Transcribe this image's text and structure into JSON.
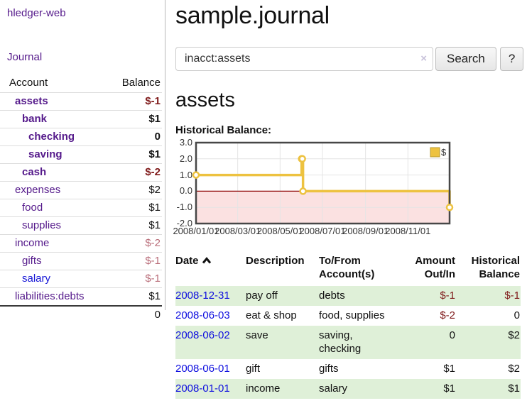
{
  "colors": {
    "purple": "#551a8b",
    "blue": "#1414d6",
    "link_blue": "#0e0edf",
    "black": "#111111",
    "darkred": "#7f1a1a",
    "palered": "#b96d79",
    "stripe_green": "#dff0d8",
    "chart_line": "#edc240",
    "chart_negative_fill": "#fbe1e1",
    "chart_zero_line": "#8b0000",
    "chart_grid": "#e4e4e4",
    "chart_border": "#474747"
  },
  "sidebar": {
    "brand": "hledger-web",
    "nav_journal": "Journal",
    "accounts": {
      "account_header": "Account",
      "balance_header": "Balance",
      "rows": [
        {
          "name": "assets",
          "indent": 1,
          "bold": true,
          "name_color": "purple",
          "balance": "$-1",
          "balance_color": "darkred"
        },
        {
          "name": "bank",
          "indent": 2,
          "bold": true,
          "name_color": "purple",
          "balance": "$1",
          "balance_color": "black"
        },
        {
          "name": "checking",
          "indent": 3,
          "bold": true,
          "name_color": "purple",
          "balance": "0",
          "balance_color": "black"
        },
        {
          "name": "saving",
          "indent": 3,
          "bold": true,
          "name_color": "purple",
          "balance": "$1",
          "balance_color": "black"
        },
        {
          "name": "cash",
          "indent": 2,
          "bold": true,
          "name_color": "purple",
          "balance": "$-2",
          "balance_color": "darkred"
        },
        {
          "name": "expenses",
          "indent": 1,
          "bold": false,
          "name_color": "purple",
          "balance": "$2",
          "balance_color": "black"
        },
        {
          "name": "food",
          "indent": 2,
          "bold": false,
          "name_color": "purple",
          "balance": "$1",
          "balance_color": "black"
        },
        {
          "name": "supplies",
          "indent": 2,
          "bold": false,
          "name_color": "purple",
          "balance": "$1",
          "balance_color": "black"
        },
        {
          "name": "income",
          "indent": 1,
          "bold": false,
          "name_color": "purple",
          "balance": "$-2",
          "balance_color": "palered"
        },
        {
          "name": "gifts",
          "indent": 2,
          "bold": false,
          "name_color": "purple",
          "balance": "$-1",
          "balance_color": "palered"
        },
        {
          "name": "salary",
          "indent": 2,
          "bold": false,
          "name_color": "blue",
          "balance": "$-1",
          "balance_color": "palered"
        },
        {
          "name": "liabilities:debts",
          "indent": 1,
          "bold": false,
          "name_color": "purple",
          "balance": "$1",
          "balance_color": "black"
        }
      ],
      "total": "0"
    }
  },
  "main": {
    "title": "sample.journal",
    "search": {
      "value": "inacct:assets",
      "clear_icon": "×",
      "button_label": "Search",
      "help_label": "?"
    },
    "heading": "assets",
    "chart_title": "Historical Balance:",
    "register": {
      "headers": {
        "date": "Date",
        "description": "Description",
        "accounts": "To/From Account(s)",
        "amount": "Amount Out/In",
        "balance": "Historical Balance"
      },
      "rows": [
        {
          "date": "2008-12-31",
          "description": "pay off",
          "accounts": "debts",
          "amount": "$-1",
          "amount_color": "darkred",
          "balance": "$-1",
          "balance_color": "darkred"
        },
        {
          "date": "2008-06-03",
          "description": "eat & shop",
          "accounts": "food, supplies",
          "amount": "$-2",
          "amount_color": "darkred",
          "balance": "0",
          "balance_color": "black"
        },
        {
          "date": "2008-06-02",
          "description": "save",
          "accounts": "saving, checking",
          "amount": "0",
          "amount_color": "black",
          "balance": "$2",
          "balance_color": "black"
        },
        {
          "date": "2008-06-01",
          "description": "gift",
          "accounts": "gifts",
          "amount": "$1",
          "amount_color": "black",
          "balance": "$2",
          "balance_color": "black"
        },
        {
          "date": "2008-01-01",
          "description": "income",
          "accounts": "salary",
          "amount": "$1",
          "amount_color": "black",
          "balance": "$1",
          "balance_color": "black"
        }
      ]
    }
  },
  "chart_data": {
    "type": "line",
    "step": true,
    "title": "Historical Balance:",
    "series": [
      {
        "name": "$",
        "color": "#edc240",
        "points": [
          [
            "2008-01-01",
            1.0
          ],
          [
            "2008-06-01",
            2.0
          ],
          [
            "2008-06-02",
            2.0
          ],
          [
            "2008-06-03",
            0.0
          ],
          [
            "2008-12-31",
            -1.0
          ]
        ]
      }
    ],
    "x_range": [
      "2008-01-01",
      "2008-12-31"
    ],
    "ylim": [
      -2.0,
      3.0
    ],
    "yticks": [
      [
        3,
        "3.0"
      ],
      [
        2,
        "2.0"
      ],
      [
        1,
        "1.0"
      ],
      [
        0,
        "0.0"
      ],
      [
        -1,
        "-1.0"
      ],
      [
        -2,
        "-2.0"
      ]
    ],
    "xticks": [
      {
        "date": "2008-01-01",
        "label": "2008/01/01"
      },
      {
        "date": "2008-03-01",
        "label": "2008/03/01"
      },
      {
        "date": "2008-05-01",
        "label": "2008/05/01"
      },
      {
        "date": "2008-07-01",
        "label": "2008/07/01"
      },
      {
        "date": "2008-09-01",
        "label": "2008/09/01"
      },
      {
        "date": "2008-11-01",
        "label": "2008/11/01"
      }
    ],
    "grid": true,
    "legend_position": "top-right",
    "negative_region_shaded": true
  }
}
